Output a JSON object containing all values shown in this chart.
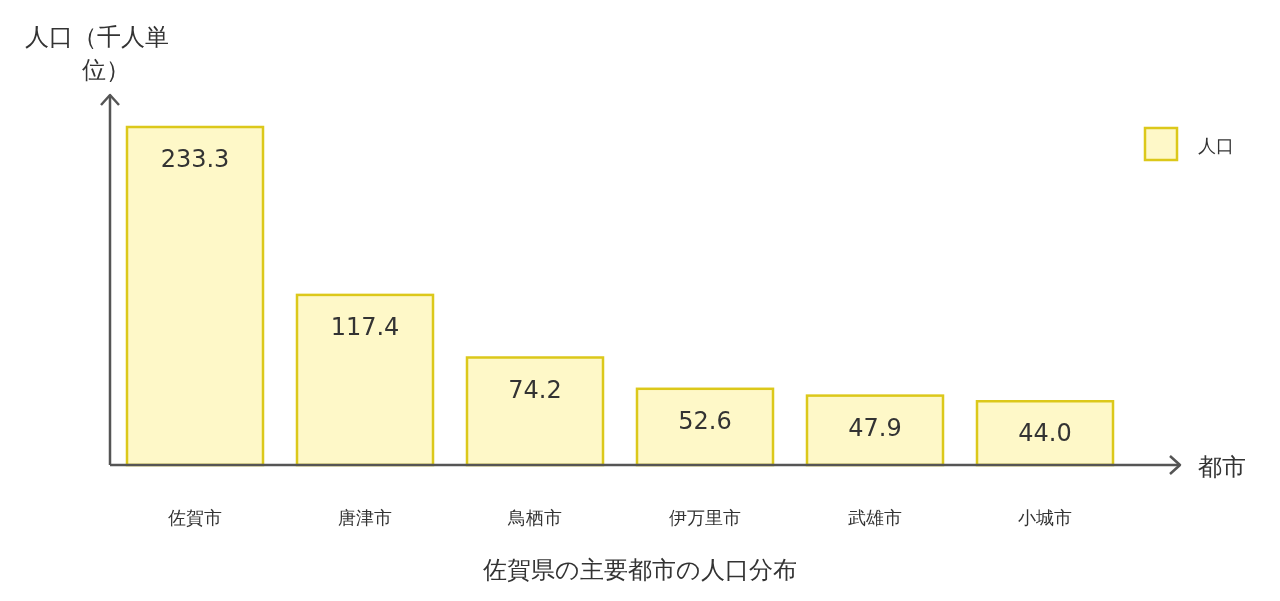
{
  "chart_data": {
    "type": "bar",
    "title": "佐賀県の主要都市の人口分布",
    "xlabel": "都市",
    "ylabel": "人口（千人単位）",
    "categories": [
      "佐賀市",
      "唐津市",
      "鳥栖市",
      "伊万里市",
      "武雄市",
      "小城市"
    ],
    "series": [
      {
        "name": "人口",
        "color": "#fef8c8",
        "values": [
          233.3,
          117.4,
          74.2,
          52.6,
          47.9,
          44.0
        ],
        "value_labels": [
          "233.3",
          "117.4",
          "74.2",
          "52.6",
          "47.9",
          "44.0"
        ]
      }
    ],
    "legend": "top right"
  }
}
